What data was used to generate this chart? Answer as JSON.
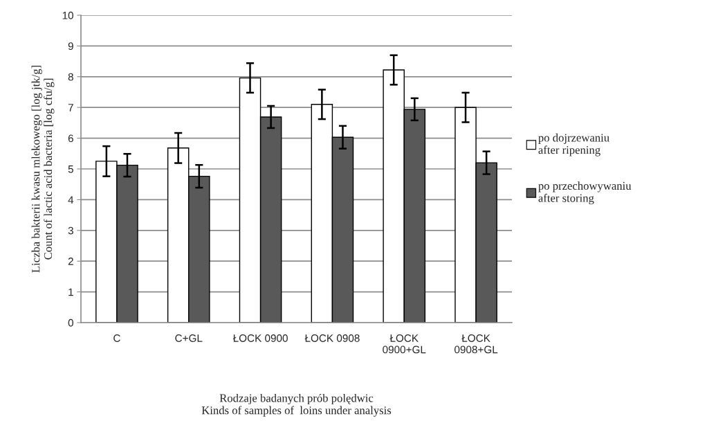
{
  "chart_data": {
    "type": "bar",
    "xlabel": "Rodzaje badanych prób polędwic\nKinds of samples of  loins under analysis",
    "ylabel": "Liczba bakterii kwasu mlekowego [log jtk/g]\nCount of lactic acid bacteria [log cfu/g]",
    "categories": [
      "C",
      "C+GL",
      "ŁOCK 0900",
      "ŁOCK 0908",
      "ŁOCK\n0900+GL",
      "ŁOCK\n0908+GL"
    ],
    "series": [
      {
        "name": "po dojrzewaniu\nafter ripening",
        "color": "#ffffff",
        "values": [
          5.25,
          5.68,
          7.96,
          7.1,
          8.22,
          7.0
        ],
        "errors": [
          0.49,
          0.49,
          0.48,
          0.48,
          0.48,
          0.48
        ]
      },
      {
        "name": "po przechowywaniu\nafter storing",
        "color": "#595959",
        "values": [
          5.12,
          4.76,
          6.69,
          6.03,
          6.94,
          5.2
        ],
        "errors": [
          0.37,
          0.37,
          0.36,
          0.37,
          0.36,
          0.37
        ]
      }
    ],
    "ylim": [
      0,
      10
    ],
    "yticks": [
      0,
      1,
      2,
      3,
      4,
      5,
      6,
      7,
      8,
      9,
      10
    ],
    "grid": "y",
    "legend": "right"
  }
}
